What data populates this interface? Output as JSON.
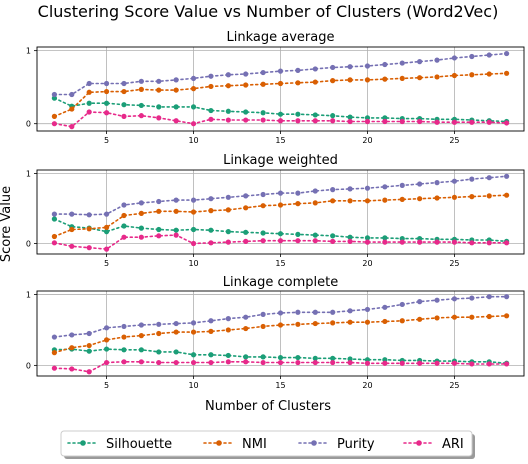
{
  "chart_data": {
    "type": "line",
    "title": "Clustering Score Value vs Number of Clusters (Word2Vec)",
    "ylabel": "Score Value",
    "xlabel": "Number of Clusters",
    "legend": {
      "placement": "bottom-center",
      "entries": [
        "Silhouette",
        "NMI",
        "Purity",
        "ARI"
      ]
    },
    "colors": {
      "Silhouette": "#1b9e77",
      "NMI": "#d95f02",
      "Purity": "#7570b3",
      "ARI": "#e7298a"
    },
    "panels": [
      {
        "title": "Linkage average",
        "xlim": [
          1,
          29
        ],
        "ylim": [
          -0.1,
          1.05
        ],
        "xticks": [
          5,
          10,
          15,
          20,
          25
        ],
        "yticks": [
          0,
          1
        ],
        "x": [
          2,
          3,
          4,
          5,
          6,
          7,
          8,
          9,
          10,
          11,
          12,
          13,
          14,
          15,
          16,
          17,
          18,
          19,
          20,
          21,
          22,
          23,
          24,
          25,
          26,
          27,
          28
        ],
        "series": [
          {
            "name": "Silhouette",
            "values": [
              0.35,
              0.24,
              0.28,
              0.28,
              0.26,
              0.25,
              0.23,
              0.23,
              0.23,
              0.18,
              0.17,
              0.16,
              0.15,
              0.13,
              0.13,
              0.12,
              0.11,
              0.09,
              0.08,
              0.08,
              0.07,
              0.07,
              0.06,
              0.06,
              0.05,
              0.04,
              0.03
            ]
          },
          {
            "name": "NMI",
            "values": [
              0.1,
              0.2,
              0.43,
              0.44,
              0.44,
              0.47,
              0.46,
              0.46,
              0.48,
              0.51,
              0.52,
              0.53,
              0.54,
              0.55,
              0.56,
              0.57,
              0.59,
              0.6,
              0.6,
              0.61,
              0.62,
              0.63,
              0.64,
              0.66,
              0.67,
              0.68,
              0.69
            ]
          },
          {
            "name": "Purity",
            "values": [
              0.4,
              0.4,
              0.55,
              0.55,
              0.55,
              0.58,
              0.58,
              0.6,
              0.62,
              0.65,
              0.67,
              0.68,
              0.7,
              0.72,
              0.73,
              0.75,
              0.77,
              0.78,
              0.79,
              0.81,
              0.83,
              0.85,
              0.87,
              0.9,
              0.92,
              0.94,
              0.96
            ]
          },
          {
            "name": "ARI",
            "values": [
              0.0,
              -0.04,
              0.16,
              0.15,
              0.1,
              0.11,
              0.08,
              0.04,
              0.0,
              0.06,
              0.05,
              0.05,
              0.05,
              0.04,
              0.04,
              0.04,
              0.04,
              0.03,
              0.03,
              0.03,
              0.03,
              0.03,
              0.02,
              0.02,
              0.02,
              0.02,
              0.01
            ]
          }
        ]
      },
      {
        "title": "Linkage weighted",
        "xlim": [
          1,
          29
        ],
        "ylim": [
          -0.15,
          1.05
        ],
        "xticks": [
          5,
          10,
          15,
          20,
          25
        ],
        "yticks": [
          0,
          1
        ],
        "x": [
          2,
          3,
          4,
          5,
          6,
          7,
          8,
          9,
          10,
          11,
          12,
          13,
          14,
          15,
          16,
          17,
          18,
          19,
          20,
          21,
          22,
          23,
          24,
          25,
          26,
          27,
          28
        ],
        "series": [
          {
            "name": "Silhouette",
            "values": [
              0.35,
              0.24,
              0.22,
              0.17,
              0.25,
              0.22,
              0.2,
              0.19,
              0.2,
              0.19,
              0.17,
              0.16,
              0.15,
              0.14,
              0.13,
              0.12,
              0.11,
              0.09,
              0.08,
              0.08,
              0.07,
              0.07,
              0.06,
              0.06,
              0.05,
              0.05,
              0.03
            ]
          },
          {
            "name": "NMI",
            "values": [
              0.1,
              0.2,
              0.21,
              0.23,
              0.4,
              0.43,
              0.46,
              0.46,
              0.45,
              0.47,
              0.48,
              0.51,
              0.54,
              0.55,
              0.57,
              0.58,
              0.61,
              0.61,
              0.61,
              0.62,
              0.63,
              0.64,
              0.65,
              0.66,
              0.67,
              0.68,
              0.69
            ]
          },
          {
            "name": "Purity",
            "values": [
              0.42,
              0.42,
              0.41,
              0.42,
              0.55,
              0.58,
              0.6,
              0.62,
              0.62,
              0.64,
              0.66,
              0.68,
              0.7,
              0.72,
              0.72,
              0.75,
              0.77,
              0.78,
              0.79,
              0.81,
              0.83,
              0.85,
              0.87,
              0.89,
              0.92,
              0.94,
              0.96
            ]
          },
          {
            "name": "ARI",
            "values": [
              0.01,
              -0.04,
              -0.06,
              -0.08,
              0.09,
              0.09,
              0.11,
              0.12,
              0.0,
              0.01,
              0.02,
              0.03,
              0.04,
              0.04,
              0.04,
              0.04,
              0.03,
              0.03,
              0.02,
              0.02,
              0.02,
              0.02,
              0.02,
              0.02,
              0.01,
              0.01,
              0.01
            ]
          }
        ]
      },
      {
        "title": "Linkage complete",
        "xlim": [
          1,
          29
        ],
        "ylim": [
          -0.15,
          1.05
        ],
        "xticks": [
          5,
          10,
          15,
          20,
          25
        ],
        "yticks": [
          0,
          1
        ],
        "x": [
          2,
          3,
          4,
          5,
          6,
          7,
          8,
          9,
          10,
          11,
          12,
          13,
          14,
          15,
          16,
          17,
          18,
          19,
          20,
          21,
          22,
          23,
          24,
          25,
          26,
          27,
          28
        ],
        "series": [
          {
            "name": "Silhouette",
            "values": [
              0.22,
              0.23,
              0.2,
              0.23,
              0.22,
              0.22,
              0.19,
              0.19,
              0.15,
              0.15,
              0.14,
              0.12,
              0.12,
              0.11,
              0.11,
              0.1,
              0.1,
              0.09,
              0.08,
              0.08,
              0.07,
              0.07,
              0.06,
              0.06,
              0.05,
              0.05,
              0.03
            ]
          },
          {
            "name": "NMI",
            "values": [
              0.18,
              0.25,
              0.28,
              0.36,
              0.4,
              0.42,
              0.45,
              0.47,
              0.47,
              0.48,
              0.5,
              0.52,
              0.55,
              0.57,
              0.58,
              0.59,
              0.6,
              0.61,
              0.61,
              0.62,
              0.63,
              0.65,
              0.67,
              0.68,
              0.68,
              0.69,
              0.7
            ]
          },
          {
            "name": "Purity",
            "values": [
              0.4,
              0.43,
              0.45,
              0.53,
              0.55,
              0.57,
              0.58,
              0.59,
              0.6,
              0.63,
              0.66,
              0.68,
              0.72,
              0.74,
              0.75,
              0.75,
              0.75,
              0.77,
              0.79,
              0.82,
              0.86,
              0.9,
              0.92,
              0.94,
              0.95,
              0.97,
              0.97
            ]
          },
          {
            "name": "ARI",
            "values": [
              -0.04,
              -0.05,
              -0.09,
              0.04,
              0.05,
              0.05,
              0.04,
              0.04,
              0.04,
              0.04,
              0.05,
              0.05,
              0.04,
              0.04,
              0.04,
              0.04,
              0.04,
              0.04,
              0.03,
              0.03,
              0.03,
              0.03,
              0.03,
              0.03,
              0.02,
              0.02,
              0.02
            ]
          }
        ]
      }
    ]
  }
}
